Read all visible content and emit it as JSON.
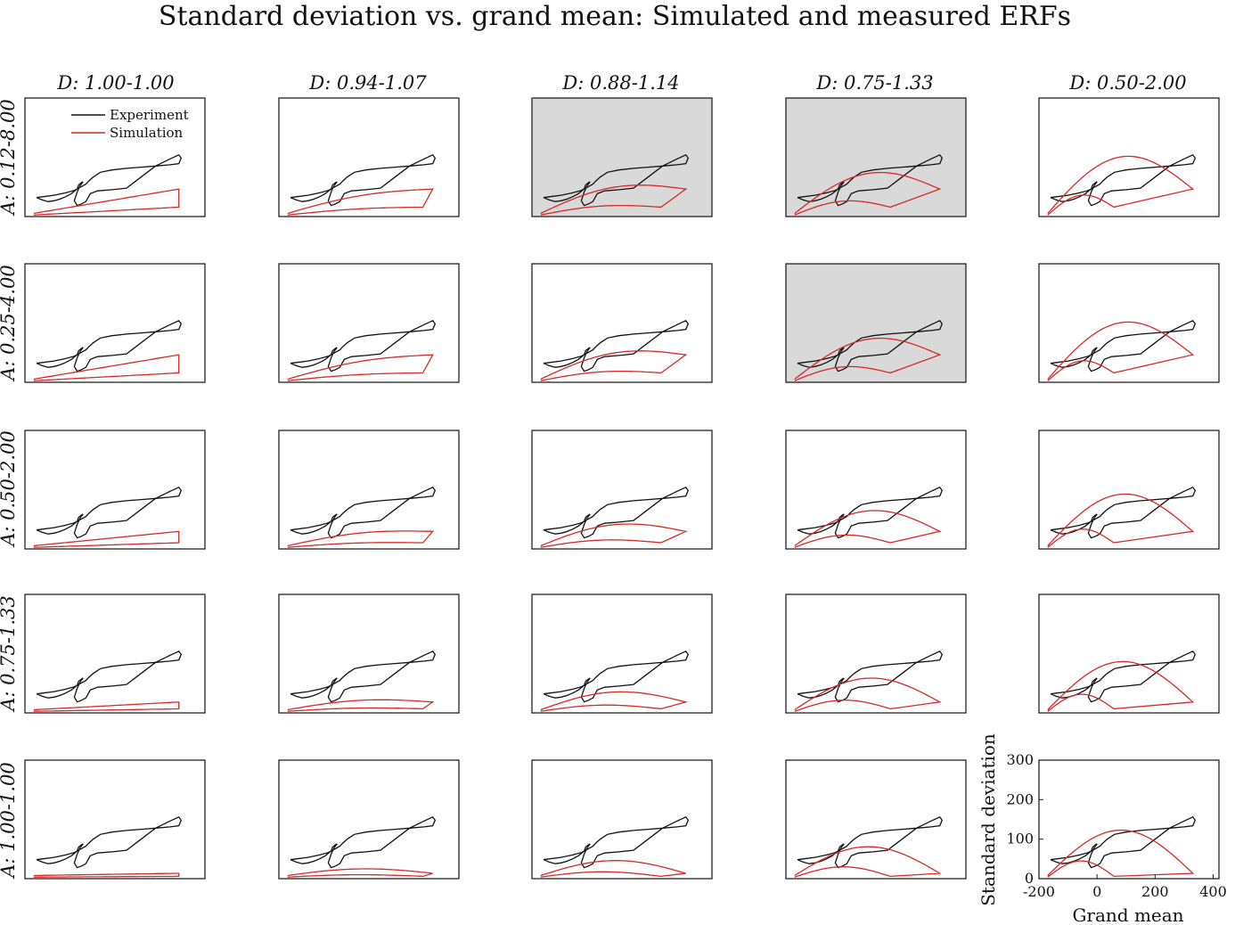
{
  "figure": {
    "title": "Standard deviation vs. grand mean: Simulated and measured ERFs"
  },
  "colors": {
    "experiment": "#111111",
    "simulation": "#d62a26",
    "highlight_bg": "#d9d9d9",
    "panel_bg": "#ffffff"
  },
  "chart_data": {
    "type": "line",
    "layout": "small-multiples grid, 5 rows x 5 columns",
    "columns": [
      "D: 1.00-1.00",
      "D: 0.94-1.07",
      "D: 0.88-1.14",
      "D: 0.75-1.33",
      "D: 0.50-2.00"
    ],
    "rows": [
      "A: 0.12-8.00",
      "A: 0.25-4.00",
      "A: 0.50-2.00",
      "A: 0.75-1.33",
      "A: 1.00-1.00"
    ],
    "highlighted_panels": [
      [
        0,
        2
      ],
      [
        0,
        3
      ],
      [
        1,
        3
      ]
    ],
    "legend": {
      "entries": [
        "Experiment",
        "Simulation"
      ],
      "placement": "top-left of first panel"
    },
    "xlabel": "Grand mean",
    "ylabel": "Standard deviation",
    "xlim": [
      -200,
      420
    ],
    "ylim": [
      0,
      300
    ],
    "xticks": [
      -200,
      0,
      200,
      400
    ],
    "yticks": [
      0,
      100,
      200,
      300
    ],
    "grid": false,
    "experiment_curve": {
      "x": [
        -160,
        -140,
        -120,
        -100,
        -80,
        -60,
        -40,
        -20,
        -15,
        -5,
        0,
        -10,
        -20,
        -30,
        -20,
        -5,
        10,
        25,
        50,
        100,
        150,
        200,
        250,
        300,
        330,
        338,
        330,
        300,
        250,
        200,
        150,
        100,
        60,
        35,
        20,
        10,
        -10,
        -30,
        -60,
        -100,
        -140,
        -160
      ],
      "y": [
        48,
        42,
        38,
        40,
        44,
        50,
        58,
        70,
        80,
        86,
        88,
        78,
        62,
        40,
        28,
        32,
        38,
        58,
        65,
        68,
        72,
        100,
        128,
        146,
        156,
        148,
        134,
        131,
        128,
        125,
        122,
        118,
        112,
        100,
        90,
        82,
        74,
        66,
        60,
        54,
        50,
        48
      ]
    },
    "simulation_scales": {
      "amplitude_by_row": [
        0.22,
        0.22,
        0.13,
        0.07,
        0.02
      ],
      "expansion_by_col": [
        0.0,
        0.2,
        0.5,
        1.0,
        1.6
      ]
    }
  }
}
